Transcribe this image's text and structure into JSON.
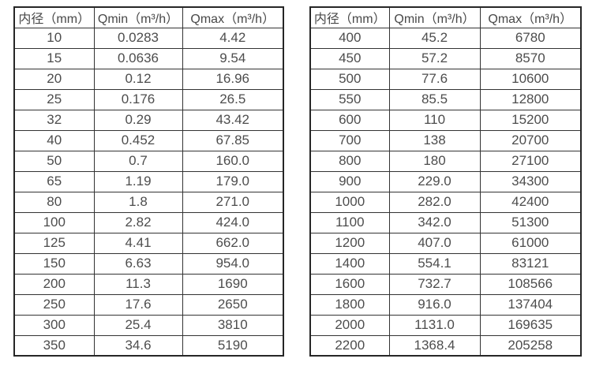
{
  "colors": {
    "background": "#ffffff",
    "border": "#333333",
    "outer_border": "#262626",
    "text": "#4d4d4d"
  },
  "chart_data": [
    {
      "type": "table",
      "headers": [
        "内径（mm）",
        "Qmin（m³/h）",
        "Qmax（m³/h）"
      ],
      "rows": [
        [
          "10",
          "0.0283",
          "4.42"
        ],
        [
          "15",
          "0.0636",
          "9.54"
        ],
        [
          "20",
          "0.12",
          "16.96"
        ],
        [
          "25",
          "0.176",
          "26.5"
        ],
        [
          "32",
          "0.29",
          "43.42"
        ],
        [
          "40",
          "0.452",
          "67.85"
        ],
        [
          "50",
          "0.7",
          "160.0"
        ],
        [
          "65",
          "1.19",
          "179.0"
        ],
        [
          "80",
          "1.8",
          "271.0"
        ],
        [
          "100",
          "2.82",
          "424.0"
        ],
        [
          "125",
          "4.41",
          "662.0"
        ],
        [
          "150",
          "6.63",
          "954.0"
        ],
        [
          "200",
          "11.3",
          "1690"
        ],
        [
          "250",
          "17.6",
          "2650"
        ],
        [
          "300",
          "25.4",
          "3810"
        ],
        [
          "350",
          "34.6",
          "5190"
        ]
      ]
    },
    {
      "type": "table",
      "headers": [
        "内径（mm）",
        "Qmin（m³/h）",
        "Qmax（m³/h）"
      ],
      "rows": [
        [
          "400",
          "45.2",
          "6780"
        ],
        [
          "450",
          "57.2",
          "8570"
        ],
        [
          "500",
          "77.6",
          "10600"
        ],
        [
          "550",
          "85.5",
          "12800"
        ],
        [
          "600",
          "110",
          "15200"
        ],
        [
          "700",
          "138",
          "20700"
        ],
        [
          "800",
          "180",
          "27100"
        ],
        [
          "900",
          "229.0",
          "34300"
        ],
        [
          "1000",
          "282.0",
          "42400"
        ],
        [
          "1100",
          "342.0",
          "51300"
        ],
        [
          "1200",
          "407.0",
          "61000"
        ],
        [
          "1400",
          "554.1",
          "83121"
        ],
        [
          "1600",
          "732.7",
          "108566"
        ],
        [
          "1800",
          "916.0",
          "137404"
        ],
        [
          "2000",
          "1131.0",
          "169635"
        ],
        [
          "2200",
          "1368.4",
          "205258"
        ]
      ]
    }
  ]
}
